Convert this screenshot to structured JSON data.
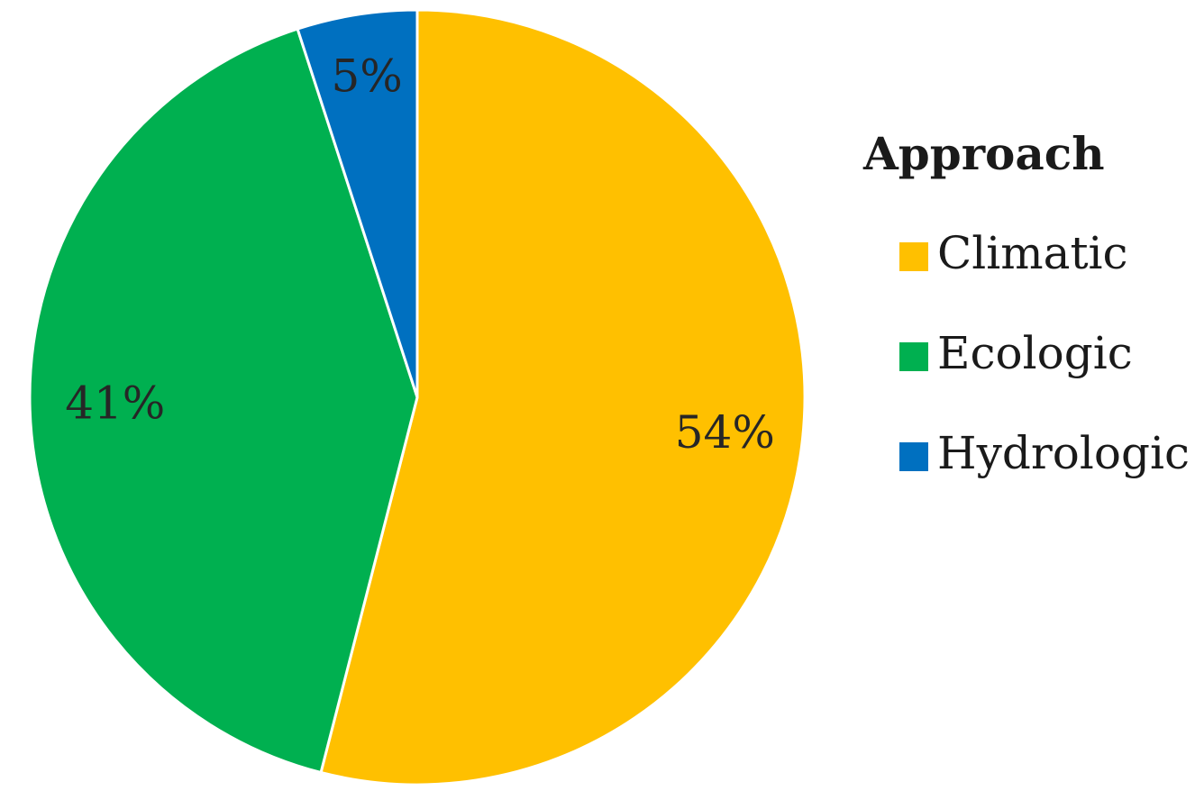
{
  "chart_data": {
    "type": "pie",
    "categories": [
      "Climatic",
      "Ecologic",
      "Hydrologic"
    ],
    "values": [
      54,
      41,
      5
    ],
    "value_labels": [
      "54%",
      "41%",
      "5%"
    ],
    "colors": [
      "#FFC000",
      "#00B050",
      "#0070C0"
    ],
    "title": "",
    "legend": {
      "title": "Approach",
      "placement": "right",
      "entries": [
        "Climatic",
        "Ecologic",
        "Hydrologic"
      ]
    },
    "start_angle": "12 o'clock",
    "direction": "clockwise"
  }
}
